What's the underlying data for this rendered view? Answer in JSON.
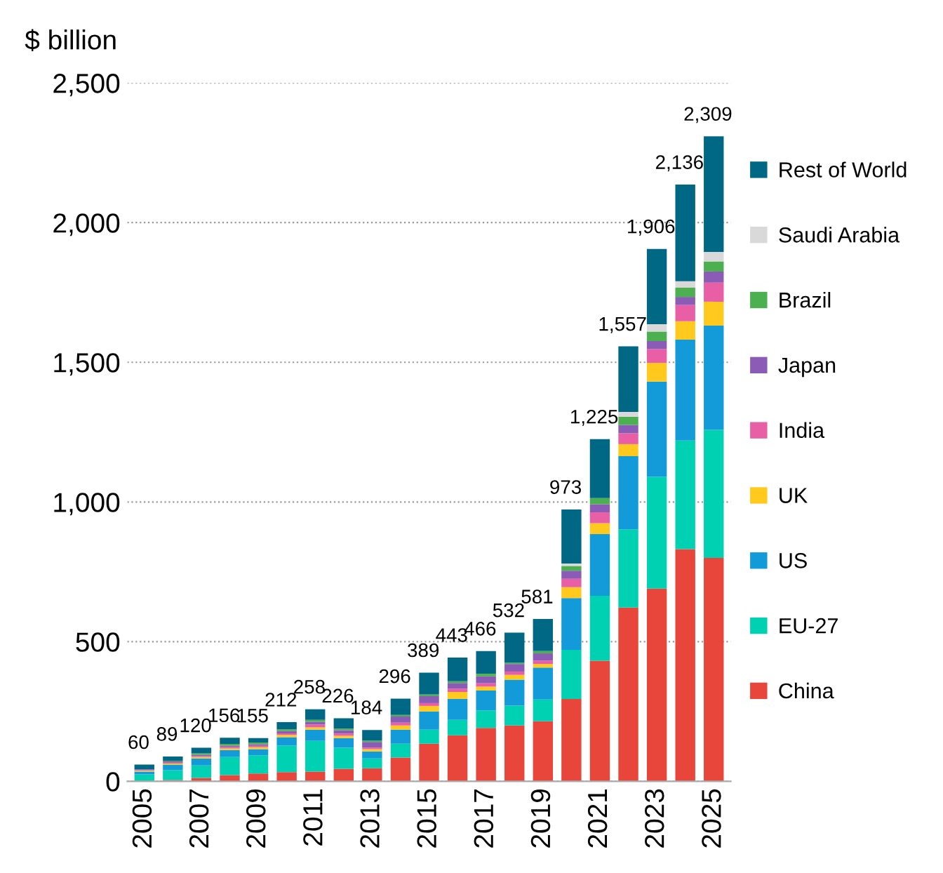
{
  "chart_data": {
    "type": "bar",
    "stacked": true,
    "ylabel": "$ billion",
    "categories": [
      "2005",
      null,
      "2007",
      null,
      "2009",
      null,
      "2011",
      null,
      "2013",
      null,
      "2015",
      null,
      "2017",
      null,
      "2019",
      null,
      "2021",
      null,
      "2023",
      null,
      "2025"
    ],
    "series": [
      {
        "name": "China",
        "color": "#e8463a",
        "values": [
          null,
          5,
          12,
          22,
          28,
          33,
          35,
          45,
          47,
          85,
          135,
          165,
          191,
          200,
          215,
          295,
          432,
          622,
          690,
          831,
          800
        ]
      },
      {
        "name": "EU-27",
        "color": "#00d1b2",
        "values": [
          25,
          35,
          45,
          65,
          65,
          95,
          110,
          75,
          35,
          50,
          50,
          55,
          63,
          71,
          78,
          176,
          232,
          280,
          400,
          389,
          458
        ]
      },
      {
        "name": "US",
        "color": "#139bd9",
        "values": [
          10,
          20,
          25,
          25,
          22,
          30,
          40,
          35,
          25,
          50,
          65,
          75,
          71,
          93,
          114,
          185,
          221,
          262,
          341,
          361,
          373
        ]
      },
      {
        "name": "UK",
        "color": "#ffc91e",
        "values": [
          3,
          4,
          5,
          6,
          7,
          8,
          8,
          8,
          8,
          15,
          20,
          25,
          14,
          17,
          13,
          39,
          39,
          43,
          67,
          66,
          86
        ]
      },
      {
        "name": "India",
        "color": "#e85fa5",
        "values": [
          2,
          3,
          3,
          5,
          5,
          6,
          10,
          8,
          6,
          10,
          10,
          12,
          12,
          12,
          12,
          30,
          39,
          39,
          49,
          58,
          68
        ]
      },
      {
        "name": "Japan",
        "color": "#8a5cb5",
        "values": [
          3,
          4,
          5,
          5,
          6,
          8,
          10,
          12,
          20,
          22,
          25,
          20,
          25,
          27,
          26,
          29,
          29,
          30,
          29,
          29,
          40
        ]
      },
      {
        "name": "Brazil",
        "color": "#4caf50",
        "values": [
          null,
          3,
          5,
          6,
          6,
          6,
          7,
          6,
          5,
          6,
          6,
          6,
          9,
          4,
          8,
          17,
          22,
          29,
          34,
          34,
          36
        ]
      },
      {
        "name": "Saudi Arabia",
        "color": "#d9d9d9",
        "values": [
          0,
          0,
          0,
          0,
          0,
          0,
          0,
          0,
          0,
          0,
          0,
          0,
          0,
          0,
          0,
          9,
          null,
          17,
          26,
          22,
          34
        ]
      },
      {
        "name": "Rest of World",
        "color": "#006884",
        "values": [
          17,
          15,
          20,
          22,
          16,
          26,
          38,
          37,
          38,
          58,
          78,
          85,
          81,
          108,
          115,
          193,
          211,
          235,
          270,
          346,
          414
        ]
      }
    ],
    "totals": [
      "60",
      "89",
      "120",
      "156",
      "155",
      "212",
      "258",
      "226",
      "184",
      "296",
      "389",
      "443",
      "466",
      "532",
      "581",
      "973",
      "1,225",
      "1,557",
      "1,906",
      "2,136",
      "2,309"
    ],
    "ylim": [
      0,
      2500
    ],
    "yticks": [
      {
        "value": 0,
        "label": "0"
      },
      {
        "value": 500,
        "label": "500"
      },
      {
        "value": 1000,
        "label": "1,000"
      },
      {
        "value": 1500,
        "label": "1,500"
      },
      {
        "value": 2000,
        "label": "2,000"
      },
      {
        "value": 2500,
        "label": "2,500"
      }
    ],
    "grid": "y",
    "legend": "right"
  }
}
